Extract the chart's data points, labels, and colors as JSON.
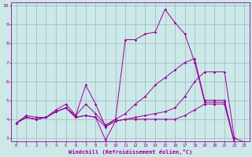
{
  "xlabel": "Windchill (Refroidissement éolien,°C)",
  "x": [
    0,
    1,
    2,
    3,
    4,
    5,
    6,
    7,
    8,
    9,
    10,
    11,
    12,
    13,
    14,
    15,
    16,
    17,
    18,
    19,
    20,
    21,
    22,
    23
  ],
  "line1": [
    3.8,
    4.2,
    4.1,
    4.1,
    4.5,
    4.8,
    4.2,
    5.8,
    4.8,
    3.6,
    4.0,
    8.2,
    8.2,
    8.5,
    8.6,
    9.8,
    9.1,
    8.5,
    7.0,
    4.9,
    4.9,
    4.9,
    2.75,
    2.75
  ],
  "line2": [
    3.8,
    4.1,
    4.0,
    4.1,
    4.4,
    4.6,
    4.2,
    4.8,
    4.3,
    3.7,
    4.0,
    4.3,
    4.8,
    5.2,
    5.8,
    6.2,
    6.6,
    7.0,
    7.2,
    5.0,
    5.0,
    5.0,
    2.8,
    2.8
  ],
  "line3": [
    3.8,
    4.1,
    4.0,
    4.1,
    4.4,
    4.6,
    4.1,
    4.2,
    4.1,
    3.6,
    3.9,
    4.0,
    4.1,
    4.2,
    4.3,
    4.4,
    4.6,
    5.2,
    6.0,
    6.5,
    6.5,
    6.5,
    3.0,
    2.8
  ],
  "line4": [
    3.8,
    4.1,
    4.0,
    4.1,
    4.4,
    4.6,
    4.1,
    4.2,
    4.1,
    2.9,
    3.9,
    4.0,
    4.0,
    4.0,
    4.0,
    4.0,
    4.0,
    4.2,
    4.5,
    4.8,
    4.8,
    4.8,
    2.75,
    2.75
  ],
  "line_color": "#990099",
  "bg_color": "#cce8e8",
  "grid_color": "#99bbbb",
  "ylim": [
    3,
    10
  ],
  "xlim": [
    -0.5,
    23.5
  ],
  "yticks": [
    3,
    4,
    5,
    6,
    7,
    8,
    9,
    10
  ],
  "xticks": [
    0,
    1,
    2,
    3,
    4,
    5,
    6,
    7,
    8,
    9,
    10,
    11,
    12,
    13,
    14,
    15,
    16,
    17,
    18,
    19,
    20,
    21,
    22,
    23
  ]
}
